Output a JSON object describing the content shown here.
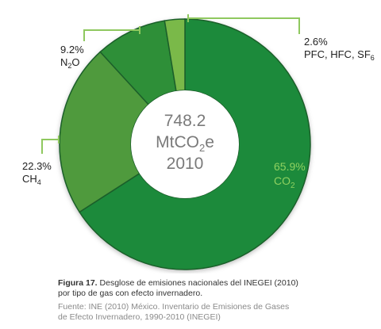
{
  "chart_data": {
    "type": "pie",
    "center_label": {
      "line1": "748.2",
      "line2_main": "MtCO",
      "line2_sub": "2",
      "line2_end": "e",
      "line3": "2010"
    },
    "slices": [
      {
        "label_main": "CO",
        "label_sub": "2",
        "label_end": "",
        "label_prefix": "",
        "value": 65.9,
        "value_text": "65.9%",
        "color": "#1f8a3a"
      },
      {
        "label_main": "CH",
        "label_sub": "4",
        "label_end": "",
        "label_prefix": "",
        "value": 22.3,
        "value_text": "22.3%",
        "color": "#4f9a3c"
      },
      {
        "label_main": "N",
        "label_sub": "2",
        "label_end": "O",
        "label_prefix": "",
        "value": 9.2,
        "value_text": "9.2%",
        "color": "#2e8f37"
      },
      {
        "label_main": "",
        "label_sub": "6",
        "label_end": "",
        "label_prefix": "PFC, HFC, SF",
        "value": 2.6,
        "value_text": "2.6%",
        "color": "#7ab94a"
      }
    ],
    "colors": {
      "leader_line": "#8fc85f",
      "co2_label": "#8fd160",
      "center_text": "#7a7a7a",
      "center_fill": "#ffffff"
    }
  },
  "caption": {
    "figure_label": "Figura 17.",
    "line1": " Desglose de emisiones nacionales del INEGEI (2010)",
    "line2": "por tipo de gas con efecto invernadero."
  },
  "source": {
    "line1": "Fuente: INE (2010) México. Inventario de Emisiones de Gases",
    "line2": "de Efecto Invernadero, 1990-2010 (INEGEI)"
  }
}
